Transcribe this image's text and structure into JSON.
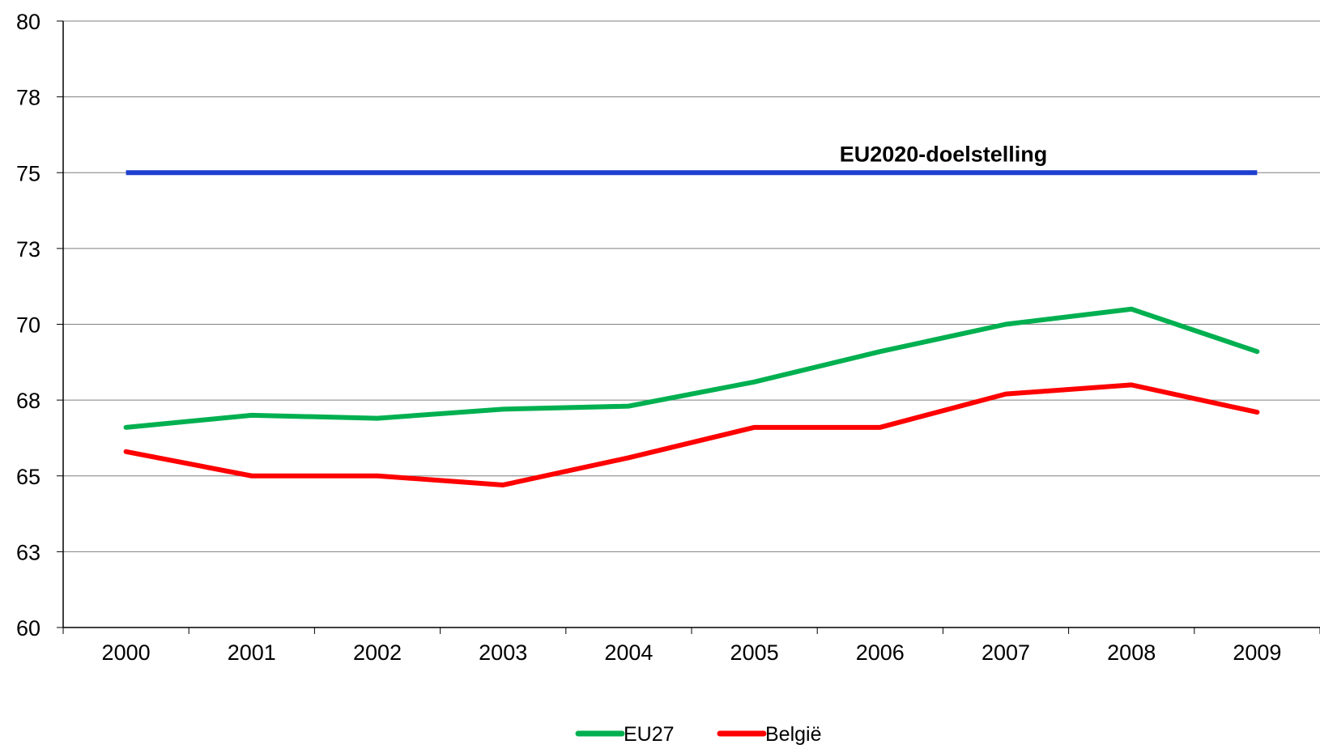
{
  "chart_data": {
    "type": "line",
    "categories": [
      "2000",
      "2001",
      "2002",
      "2003",
      "2004",
      "2005",
      "2006",
      "2007",
      "2008",
      "2009"
    ],
    "ylim": [
      60,
      80
    ],
    "yticks": [
      {
        "value": 60,
        "label": "60"
      },
      {
        "value": 62.5,
        "label": "63"
      },
      {
        "value": 65,
        "label": "65"
      },
      {
        "value": 67.5,
        "label": "68"
      },
      {
        "value": 70,
        "label": "70"
      },
      {
        "value": 72.5,
        "label": "73"
      },
      {
        "value": 75,
        "label": "75"
      },
      {
        "value": 77.5,
        "label": "78"
      },
      {
        "value": 80,
        "label": "80"
      }
    ],
    "grid": true,
    "legend_position": "bottom",
    "series": [
      {
        "name": "EU27",
        "color": "#00b050",
        "values": [
          66.6,
          67.0,
          66.9,
          67.2,
          67.3,
          68.1,
          69.1,
          70.0,
          70.5,
          69.1
        ]
      },
      {
        "name": "België",
        "color": "#ff0000",
        "values": [
          65.8,
          65.0,
          65.0,
          64.7,
          65.6,
          66.6,
          66.6,
          67.7,
          68.0,
          67.1
        ]
      }
    ],
    "target": {
      "label": "EU2020-doelstelling",
      "value": 75,
      "color": "#1f3fcf"
    }
  }
}
